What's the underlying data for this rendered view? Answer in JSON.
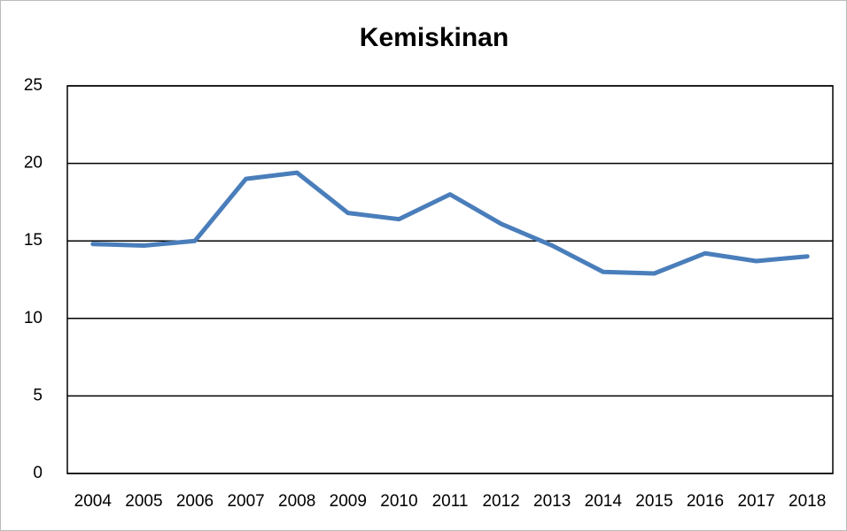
{
  "chart_data": {
    "type": "line",
    "title": "Kemiskinan",
    "categories": [
      "2004",
      "2005",
      "2006",
      "2007",
      "2008",
      "2009",
      "2010",
      "2011",
      "2012",
      "2013",
      "2014",
      "2015",
      "2016",
      "2017",
      "2018"
    ],
    "series": [
      {
        "name": "Kemiskinan",
        "color": "#4a7ebb",
        "values": [
          14.8,
          14.7,
          15.0,
          19.0,
          19.4,
          16.8,
          16.4,
          18.0,
          16.1,
          14.7,
          13.0,
          12.9,
          14.2,
          13.7,
          14.0
        ]
      }
    ],
    "ylim": [
      0,
      25
    ],
    "yticks": [
      0,
      5,
      10,
      15,
      20,
      25
    ],
    "grid": true,
    "legend": false
  }
}
